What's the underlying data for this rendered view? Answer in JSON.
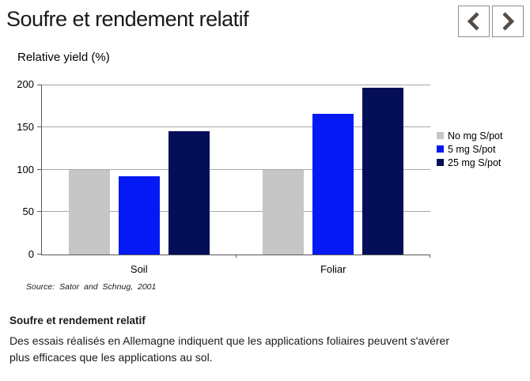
{
  "header": {
    "title": "Soufre et rendement relatif"
  },
  "chart_data": {
    "type": "bar",
    "title": "Relative yield (%)",
    "categories": [
      "Soil",
      "Foliar"
    ],
    "series": [
      {
        "name": "No mg S/pot",
        "color": "#c6c6c6",
        "values": [
          100,
          100
        ]
      },
      {
        "name": "5 mg S/pot",
        "color": "#0519f5",
        "values": [
          92,
          166
        ]
      },
      {
        "name": "25 mg S/pot",
        "color": "#040f58",
        "values": [
          145,
          196
        ]
      }
    ],
    "ylim": [
      0,
      200
    ],
    "yticks": [
      0,
      50,
      100,
      150,
      200
    ],
    "grid": true,
    "legend_position": "right",
    "source": "Source: Sator and Schnug, 2001"
  },
  "caption": {
    "heading": "Soufre et rendement relatif",
    "body_line1": "Des essais réalisés en Allemagne indiquent que les applications foliaires peuvent s'avérer",
    "body_line2": "plus efficaces que les applications au sol."
  }
}
